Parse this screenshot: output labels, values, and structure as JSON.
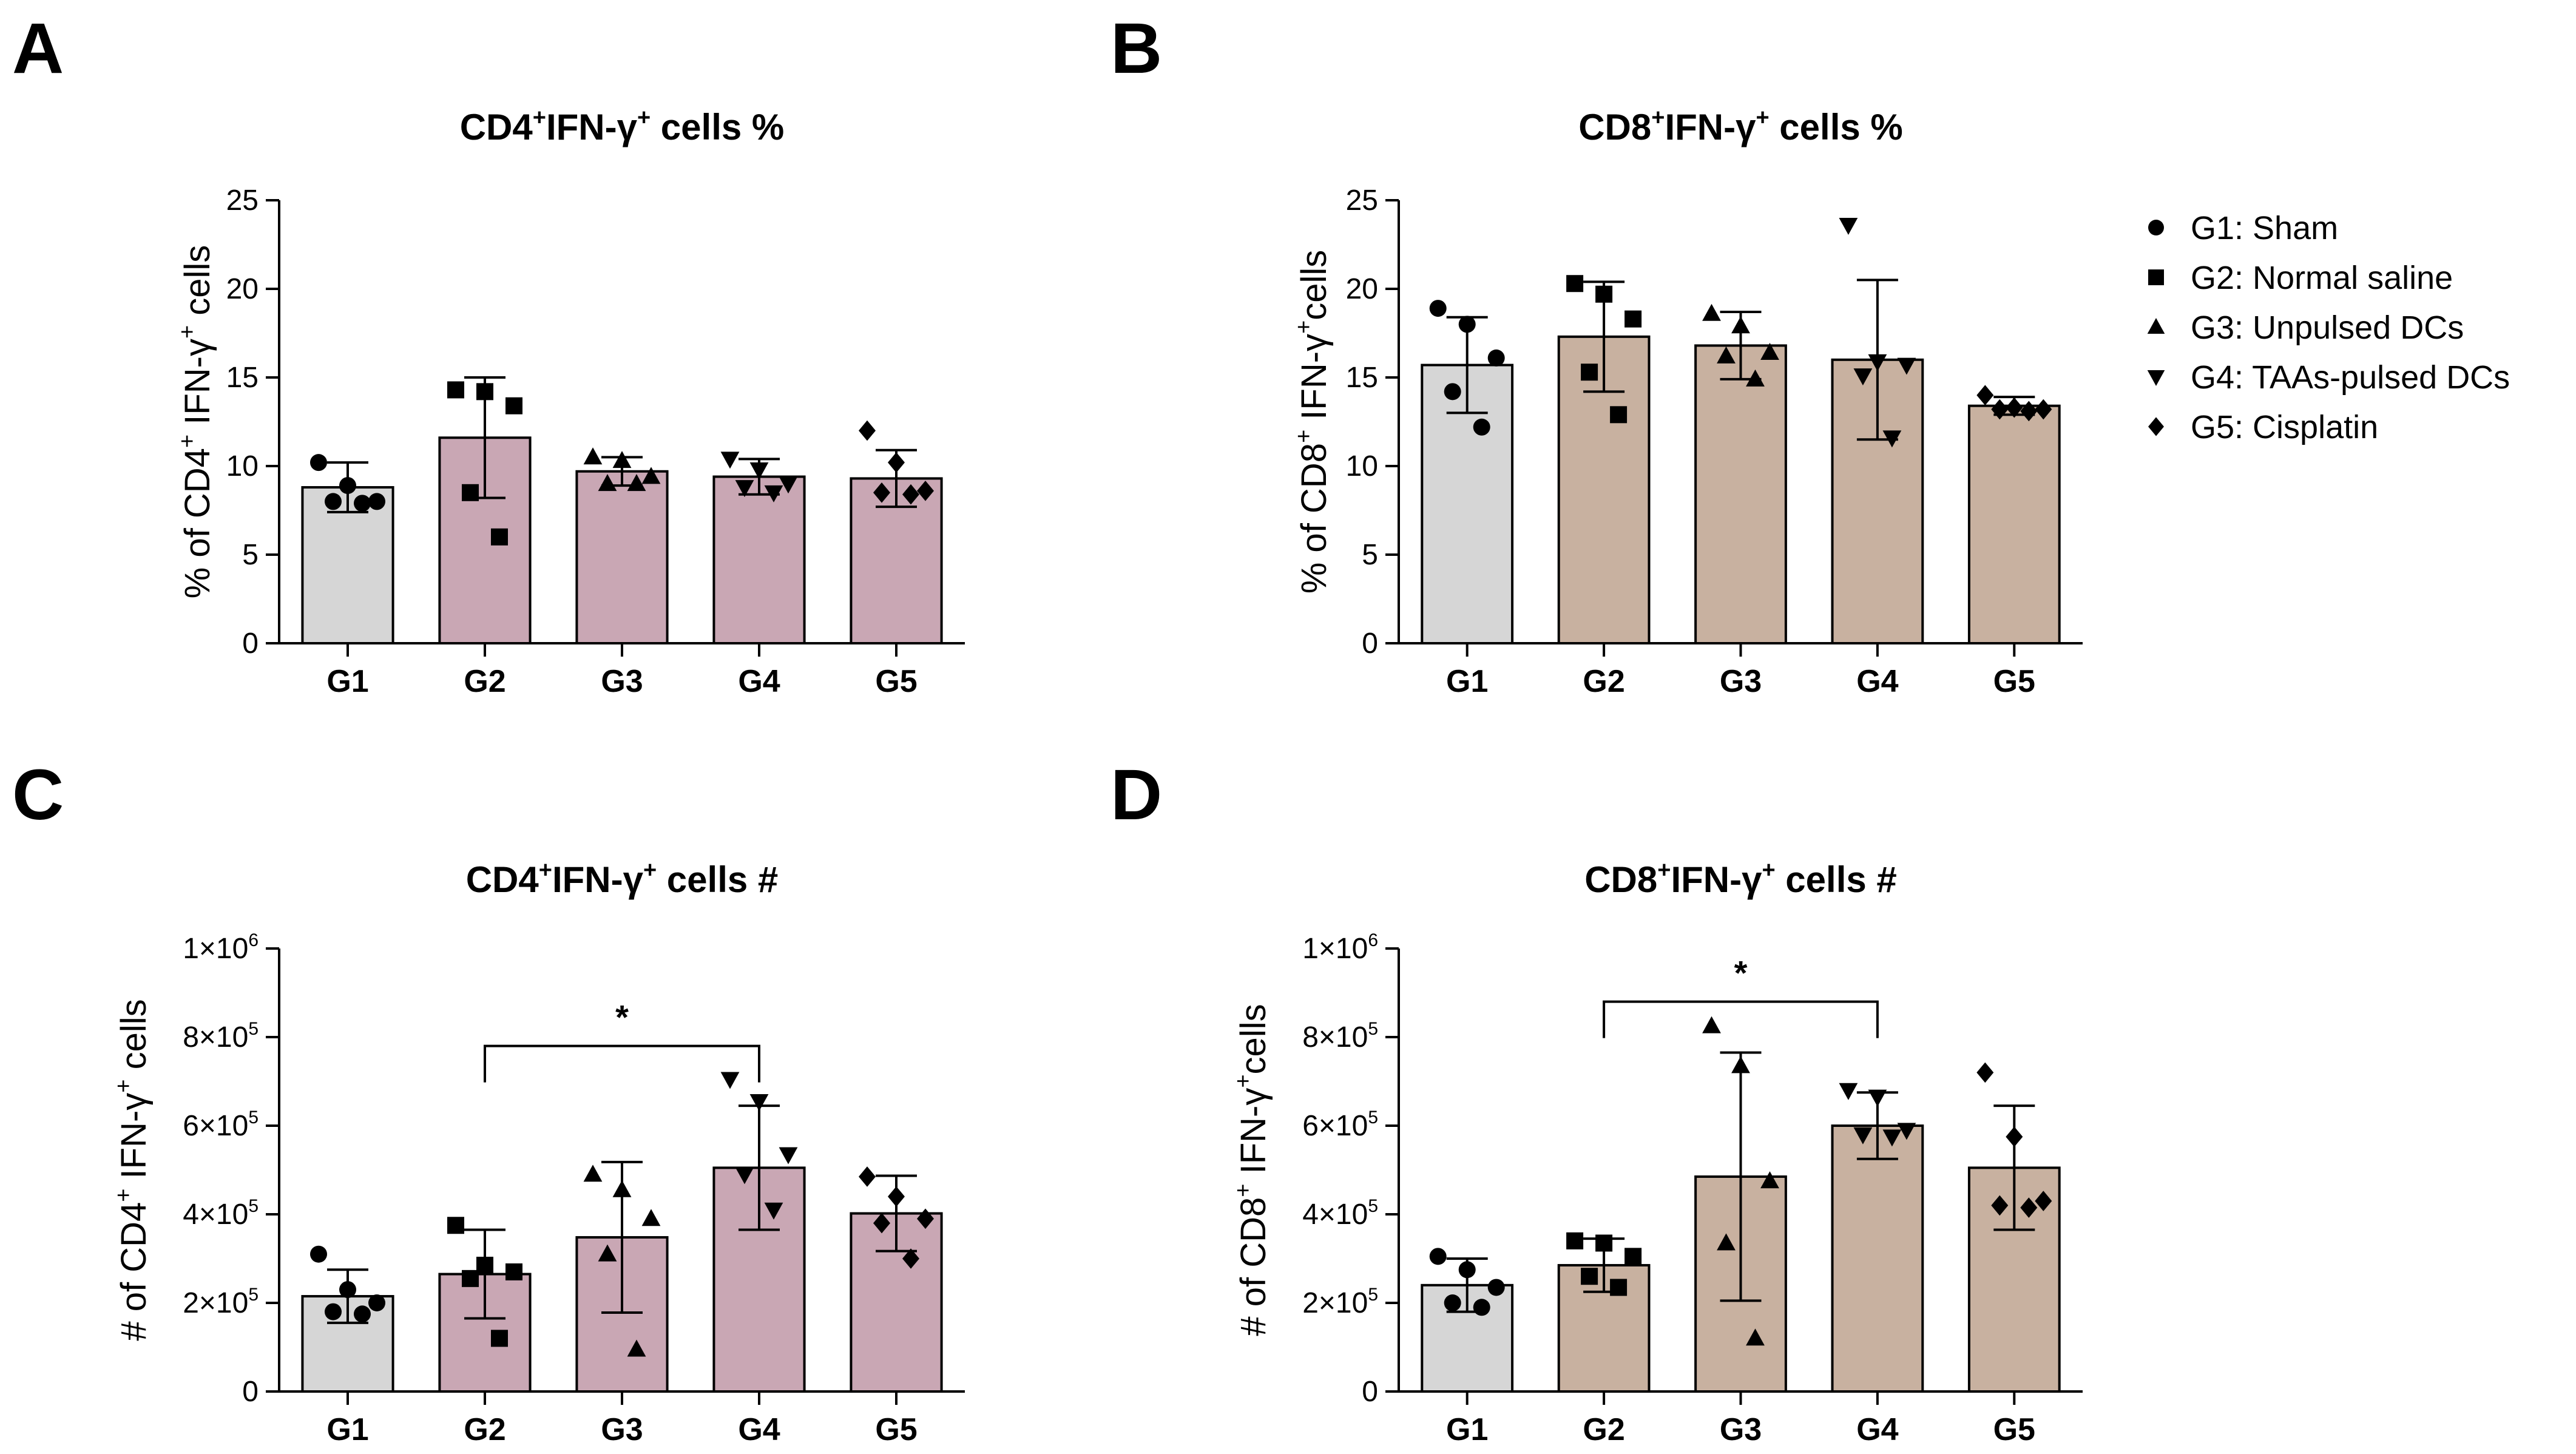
{
  "legend": {
    "items": [
      {
        "marker": "circle",
        "label": "G1: Sham"
      },
      {
        "marker": "square",
        "label": "G2: Normal saline"
      },
      {
        "marker": "triangle-up",
        "label": "G3: Unpulsed DCs"
      },
      {
        "marker": "triangle-down",
        "label": "G4: TAAs-pulsed DCs"
      },
      {
        "marker": "diamond",
        "label": "G5: Cisplatin"
      }
    ]
  },
  "chart_data": [
    {
      "panel": "A",
      "type": "bar",
      "title": {
        "prefix": "CD4",
        "sup1": "+",
        "mid": "IFN-γ",
        "sup2": "+",
        "suffix": " cells %"
      },
      "ylabel": {
        "prefix": "% of CD4",
        "sup1": "+",
        "mid": " IFN-γ",
        "sup2": "+",
        "suffix": " cells"
      },
      "ylim": [
        0,
        25
      ],
      "yticks": [
        {
          "value": 0,
          "label": "0"
        },
        {
          "value": 5,
          "label": "5"
        },
        {
          "value": 10,
          "label": "10"
        },
        {
          "value": 15,
          "label": "15"
        },
        {
          "value": 20,
          "label": "20"
        },
        {
          "value": 25,
          "label": "25"
        }
      ],
      "categories": [
        "G1",
        "G2",
        "G3",
        "G4",
        "G5"
      ],
      "bar_colors": [
        "#d6d6d6",
        "#c9a7b4",
        "#c9a7b4",
        "#c9a7b4",
        "#c9a7b4"
      ],
      "values": [
        8.8,
        11.6,
        9.7,
        9.4,
        9.3
      ],
      "errors": [
        1.4,
        3.4,
        0.8,
        1.0,
        1.6
      ],
      "points": [
        [
          10.2,
          8.9,
          8.0,
          8.0,
          7.9
        ],
        [
          14.3,
          14.2,
          13.4,
          8.5,
          6.0
        ],
        [
          10.5,
          10.3,
          9.4,
          9.0,
          9.0
        ],
        [
          10.4,
          9.8,
          9.0,
          8.8,
          8.5
        ],
        [
          12.0,
          10.2,
          8.6,
          8.5,
          8.4
        ]
      ],
      "significance": null
    },
    {
      "panel": "B",
      "type": "bar",
      "title": {
        "prefix": "CD8",
        "sup1": "+",
        "mid": "IFN-γ",
        "sup2": "+",
        "suffix": " cells %"
      },
      "ylabel": {
        "prefix": "% of CD8",
        "sup1": "+",
        "mid": " IFN-γ",
        "sup2": "+",
        "suffix": "cells"
      },
      "ylim": [
        0,
        25
      ],
      "yticks": [
        {
          "value": 0,
          "label": "0"
        },
        {
          "value": 5,
          "label": "5"
        },
        {
          "value": 10,
          "label": "10"
        },
        {
          "value": 15,
          "label": "15"
        },
        {
          "value": 20,
          "label": "20"
        },
        {
          "value": 25,
          "label": "25"
        }
      ],
      "categories": [
        "G1",
        "G2",
        "G3",
        "G4",
        "G5"
      ],
      "bar_colors": [
        "#d6d6d6",
        "#c8b1a0",
        "#c8b1a0",
        "#c8b1a0",
        "#c8b1a0"
      ],
      "values": [
        15.7,
        17.3,
        16.8,
        16.0,
        13.4
      ],
      "errors": [
        2.7,
        3.1,
        1.9,
        4.5,
        0.5
      ],
      "points": [
        [
          18.9,
          18.0,
          16.1,
          14.2,
          12.2
        ],
        [
          20.3,
          19.7,
          18.3,
          15.3,
          12.9
        ],
        [
          18.6,
          17.9,
          16.4,
          16.2,
          14.9
        ],
        [
          23.6,
          15.9,
          15.7,
          15.1,
          11.6
        ],
        [
          14.0,
          13.3,
          13.2,
          13.2,
          13.1
        ]
      ],
      "significance": null
    },
    {
      "panel": "C",
      "type": "bar",
      "title": {
        "prefix": "CD4",
        "sup1": "+",
        "mid": "IFN-γ",
        "sup2": "+",
        "suffix": " cells #"
      },
      "ylabel": {
        "prefix": "# of CD4",
        "sup1": "+",
        "mid": " IFN-γ",
        "sup2": "+",
        "suffix": " cells"
      },
      "ylim": [
        0,
        1000000
      ],
      "yticks": [
        {
          "value": 0,
          "label": "0",
          "exp": ""
        },
        {
          "value": 200000,
          "label": "2×10",
          "exp": "5"
        },
        {
          "value": 400000,
          "label": "4×10",
          "exp": "5"
        },
        {
          "value": 600000,
          "label": "6×10",
          "exp": "5"
        },
        {
          "value": 800000,
          "label": "8×10",
          "exp": "5"
        },
        {
          "value": 1000000,
          "label": "1×10",
          "exp": "6"
        }
      ],
      "categories": [
        "G1",
        "G2",
        "G3",
        "G4",
        "G5"
      ],
      "bar_colors": [
        "#d6d6d6",
        "#c9a7b4",
        "#c9a7b4",
        "#c9a7b4",
        "#c9a7b4"
      ],
      "values": [
        215000,
        265000,
        348000,
        505000,
        402000
      ],
      "errors": [
        60000,
        100000,
        170000,
        140000,
        85000
      ],
      "points": [
        [
          310000,
          230000,
          200000,
          180000,
          175000
        ],
        [
          375000,
          285000,
          270000,
          255000,
          120000
        ],
        [
          490000,
          455000,
          390000,
          310000,
          95000
        ],
        [
          705000,
          655000,
          535000,
          490000,
          410000
        ],
        [
          485000,
          440000,
          390000,
          380000,
          300000
        ]
      ],
      "significance": {
        "from": 1,
        "to": 3,
        "label": "*",
        "y": 780000
      }
    },
    {
      "panel": "D",
      "type": "bar",
      "title": {
        "prefix": "CD8",
        "sup1": "+",
        "mid": "IFN-γ",
        "sup2": "+",
        "suffix": " cells #"
      },
      "ylabel": {
        "prefix": "# of CD8",
        "sup1": "+",
        "mid": " IFN-γ",
        "sup2": "+",
        "suffix": "cells"
      },
      "ylim": [
        0,
        1000000
      ],
      "yticks": [
        {
          "value": 0,
          "label": "0",
          "exp": ""
        },
        {
          "value": 200000,
          "label": "2×10",
          "exp": "5"
        },
        {
          "value": 400000,
          "label": "4×10",
          "exp": "5"
        },
        {
          "value": 600000,
          "label": "6×10",
          "exp": "5"
        },
        {
          "value": 800000,
          "label": "8×10",
          "exp": "5"
        },
        {
          "value": 1000000,
          "label": "1×10",
          "exp": "6"
        }
      ],
      "categories": [
        "G1",
        "G2",
        "G3",
        "G4",
        "G5"
      ],
      "bar_colors": [
        "#d6d6d6",
        "#c8b1a0",
        "#c8b1a0",
        "#c8b1a0",
        "#c8b1a0"
      ],
      "values": [
        240000,
        285000,
        485000,
        600000,
        505000
      ],
      "errors": [
        60000,
        60000,
        280000,
        75000,
        140000
      ],
      "points": [
        [
          305000,
          275000,
          235000,
          200000,
          190000
        ],
        [
          340000,
          335000,
          305000,
          260000,
          235000
        ],
        [
          825000,
          735000,
          475000,
          335000,
          120000
        ],
        [
          680000,
          665000,
          590000,
          580000,
          575000
        ],
        [
          720000,
          575000,
          430000,
          420000,
          415000
        ]
      ],
      "significance": {
        "from": 1,
        "to": 3,
        "label": "*",
        "y": 880000
      }
    }
  ]
}
